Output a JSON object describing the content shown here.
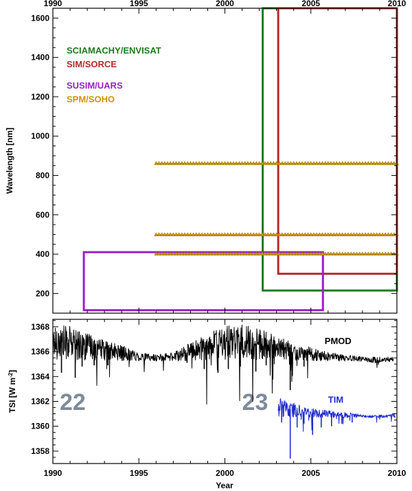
{
  "chart_data": [
    {
      "type": "box",
      "xlabel": "",
      "ylabel": "Wavelength [nm]",
      "xlim": [
        1990,
        2010
      ],
      "ylim": [
        100,
        1650
      ],
      "x_ticks": [
        1990,
        1995,
        2000,
        2005,
        2010
      ],
      "x_tick_labels": [
        "1990",
        "1995",
        "2000",
        "2005",
        "2010"
      ],
      "y_ticks": [
        200,
        400,
        600,
        800,
        1000,
        1200,
        1400,
        1600
      ],
      "y_tick_labels": [
        "200",
        "400",
        "600",
        "800",
        "1000",
        "1200",
        "1400",
        "1600"
      ],
      "legend": [
        {
          "text": "SCIAMACHY/ENVISAT",
          "color": "#1f7a1f"
        },
        {
          "text": "SIM/SORCE",
          "color": "#b52a2a"
        },
        {
          "text": "SUSIM/UARS",
          "color": "#9b20c9"
        },
        {
          "text": "SPM/SOHO",
          "color": "#c9970f"
        }
      ],
      "boxes": [
        {
          "name": "SCIAMACHY/ENVISAT",
          "color": "#1f7a1f",
          "x0": 2002.2,
          "x1": 2010.0,
          "y0": 215,
          "y1": 1650
        },
        {
          "name": "SIM/SORCE",
          "color": "#b52a2a",
          "x0": 2003.1,
          "x1": 2010.0,
          "y0": 300,
          "y1": 1650
        },
        {
          "name": "SUSIM/UARS",
          "color": "#9b20c9",
          "x0": 1991.8,
          "x1": 2005.7,
          "y0": 115,
          "y1": 410
        }
      ],
      "marker_lines": [
        {
          "name": "SPM/SOHO",
          "color": "#c9970f",
          "x0": 1996.0,
          "x1": 2010.0,
          "y": 862
        },
        {
          "name": "SPM/SOHO",
          "color": "#c9970f",
          "x0": 1996.0,
          "x1": 2010.0,
          "y": 500
        },
        {
          "name": "SPM/SOHO",
          "color": "#c9970f",
          "x0": 1996.0,
          "x1": 2010.0,
          "y": 402
        }
      ]
    },
    {
      "type": "line",
      "xlabel": "Year",
      "ylabel": "TSI [W m-2]",
      "xlim": [
        1990,
        2010
      ],
      "ylim": [
        1357,
        1368.6
      ],
      "x_ticks": [
        1990,
        1995,
        2000,
        2005,
        2010
      ],
      "x_tick_labels": [
        "1990",
        "1995",
        "2000",
        "2005",
        "2010"
      ],
      "y_ticks": [
        1358,
        1360,
        1362,
        1364,
        1366,
        1368
      ],
      "y_tick_labels": [
        "1358",
        "1360",
        "1362",
        "1364",
        "1366",
        "1368"
      ],
      "annotations": [
        {
          "text": "22",
          "x": 1990.4,
          "y": 1361.3
        },
        {
          "text": "23",
          "x": 2001.0,
          "y": 1361.3
        }
      ],
      "series": [
        {
          "name": "PMOD",
          "color": "#000000",
          "label_x": 2005.8,
          "label_y": 1366.6,
          "x": [
            1990,
            1991,
            1992,
            1993,
            1994,
            1995,
            1996,
            1997,
            1998,
            1999,
            2000,
            2001,
            2002,
            2003,
            2004,
            2005,
            2006,
            2007,
            2008,
            2009,
            2009.8
          ],
          "values": [
            1366.8,
            1366.7,
            1366.4,
            1366.1,
            1365.9,
            1365.6,
            1365.5,
            1365.6,
            1366.0,
            1366.4,
            1366.7,
            1366.8,
            1366.6,
            1366.3,
            1366.0,
            1365.8,
            1365.6,
            1365.5,
            1365.4,
            1365.3,
            1365.4
          ],
          "dips": [
            {
              "x": 1990.5,
              "y": 1364.3
            },
            {
              "x": 1991.3,
              "y": 1363.9
            },
            {
              "x": 1991.7,
              "y": 1364.8
            },
            {
              "x": 1992.4,
              "y": 1364.9
            },
            {
              "x": 1993.2,
              "y": 1364.9
            },
            {
              "x": 1997.8,
              "y": 1365.1
            },
            {
              "x": 1998.8,
              "y": 1364.6
            },
            {
              "x": 1999.6,
              "y": 1364.3
            },
            {
              "x": 2000.2,
              "y": 1364.6
            },
            {
              "x": 2000.9,
              "y": 1364.8
            },
            {
              "x": 2001.8,
              "y": 1364.4
            },
            {
              "x": 2002.4,
              "y": 1364.9
            },
            {
              "x": 2003.8,
              "y": 1362.9
            },
            {
              "x": 2004.6,
              "y": 1364.8
            }
          ]
        },
        {
          "name": "TIM",
          "color": "#1f2ecc",
          "label_x": 2006.0,
          "label_y": 1361.9,
          "x": [
            2003.1,
            2003.5,
            2004.0,
            2004.5,
            2005.0,
            2005.5,
            2006.0,
            2006.5,
            2007.0,
            2007.5,
            2008.0,
            2008.5,
            2009.0,
            2009.5,
            2009.9
          ],
          "values": [
            1361.6,
            1361.4,
            1361.3,
            1361.2,
            1361.1,
            1361.0,
            1361.0,
            1360.9,
            1360.9,
            1360.9,
            1360.8,
            1360.8,
            1360.8,
            1360.8,
            1360.9
          ],
          "dips": [
            {
              "x": 2003.3,
              "y": 1360.3
            },
            {
              "x": 2003.8,
              "y": 1357.4
            },
            {
              "x": 2004.2,
              "y": 1359.9
            },
            {
              "x": 2004.6,
              "y": 1360.2
            },
            {
              "x": 2005.1,
              "y": 1359.3
            },
            {
              "x": 2005.6,
              "y": 1359.9
            },
            {
              "x": 2006.2,
              "y": 1360.0
            },
            {
              "x": 2006.8,
              "y": 1360.2
            },
            {
              "x": 2007.4,
              "y": 1360.3
            }
          ]
        }
      ]
    }
  ]
}
